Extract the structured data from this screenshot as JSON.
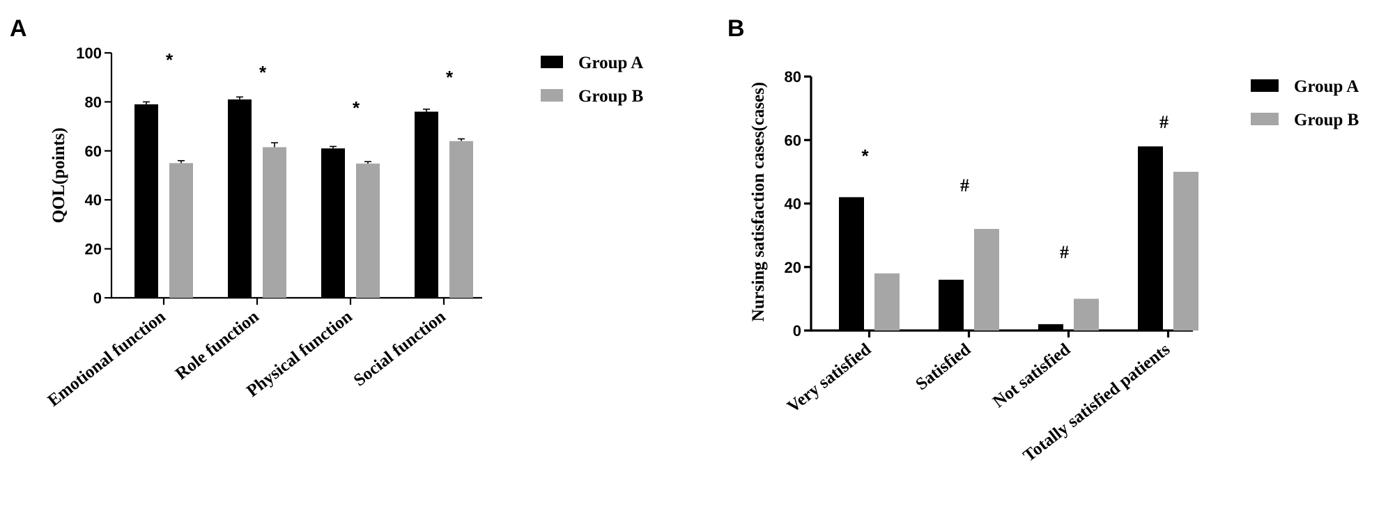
{
  "chart_data": [
    {
      "panel": "A",
      "type": "bar",
      "ylabel": "QOL(points)",
      "xlabel": "",
      "ylim": [
        0,
        100
      ],
      "yticks": [
        0,
        20,
        40,
        60,
        80,
        100
      ],
      "categories": [
        "Emotional function",
        "Role function",
        "Physical function",
        "Social function"
      ],
      "series": [
        {
          "name": "Group A",
          "color": "#000000",
          "values": [
            79,
            81,
            61,
            76
          ],
          "errors": [
            1,
            1,
            0.8,
            1
          ]
        },
        {
          "name": "Group B",
          "color": "#a6a6a6",
          "values": [
            55,
            61.5,
            54.8,
            64
          ],
          "errors": [
            1,
            1.8,
            0.8,
            0.9
          ]
        }
      ],
      "annotations": [
        "*",
        "*",
        "*",
        "*"
      ],
      "legend_position": "top-right",
      "error_bars": true
    },
    {
      "panel": "B",
      "type": "bar",
      "ylabel": "Nursing satisfaction cases(cases)",
      "xlabel": "",
      "ylim": [
        0,
        80
      ],
      "yticks": [
        0,
        20,
        40,
        60,
        80
      ],
      "categories": [
        "Very satisfied",
        "Satisfied",
        "Not satisfied",
        "Totally satisfied patients"
      ],
      "series": [
        {
          "name": "Group A",
          "color": "#000000",
          "values": [
            42,
            16,
            2,
            58
          ]
        },
        {
          "name": "Group B",
          "color": "#a6a6a6",
          "values": [
            18,
            32,
            10,
            50
          ]
        }
      ],
      "annotations": [
        "*",
        "#",
        "#",
        "#"
      ],
      "legend_position": "top-right",
      "error_bars": false
    }
  ]
}
